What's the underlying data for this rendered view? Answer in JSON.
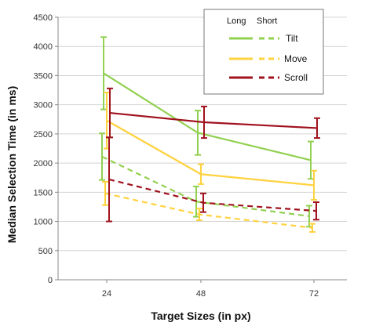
{
  "chart_data": {
    "type": "line",
    "xlabel": "Target Sizes (in px)",
    "ylabel": "Median Selection Time (in ms)",
    "x": [
      "24",
      "48",
      "72"
    ],
    "ylim": [
      0,
      4500
    ],
    "yticks": [
      "0",
      "500",
      "1000",
      "1500",
      "2000",
      "2500",
      "3000",
      "3500",
      "4000",
      "4500"
    ],
    "grid": true,
    "legend": {
      "placement": "top-right",
      "header_long": "Long",
      "header_short": "Short",
      "entries": [
        "Tilt",
        "Move",
        "Scroll"
      ]
    },
    "series": [
      {
        "name": "Tilt",
        "style": "Long",
        "color": "#92d050",
        "values": [
          3540,
          2520,
          2050
        ],
        "errors": [
          620,
          380,
          320
        ]
      },
      {
        "name": "Move",
        "style": "Long",
        "color": "#ffd23f",
        "values": [
          2730,
          1810,
          1620
        ],
        "errors": [
          480,
          170,
          250
        ]
      },
      {
        "name": "Scroll",
        "style": "Long",
        "color": "#a0121e",
        "values": [
          2860,
          2700,
          2600
        ],
        "errors": [
          420,
          270,
          170
        ]
      },
      {
        "name": "Tilt",
        "style": "Short",
        "color": "#92d050",
        "values": [
          2110,
          1340,
          1090
        ],
        "errors": [
          400,
          260,
          180
        ]
      },
      {
        "name": "Move",
        "style": "Short",
        "color": "#ffd23f",
        "values": [
          1480,
          1120,
          890
        ],
        "errors": [
          200,
          100,
          70
        ]
      },
      {
        "name": "Scroll",
        "style": "Short",
        "color": "#a0121e",
        "values": [
          1720,
          1320,
          1180
        ],
        "errors": [
          720,
          160,
          150
        ]
      }
    ]
  }
}
